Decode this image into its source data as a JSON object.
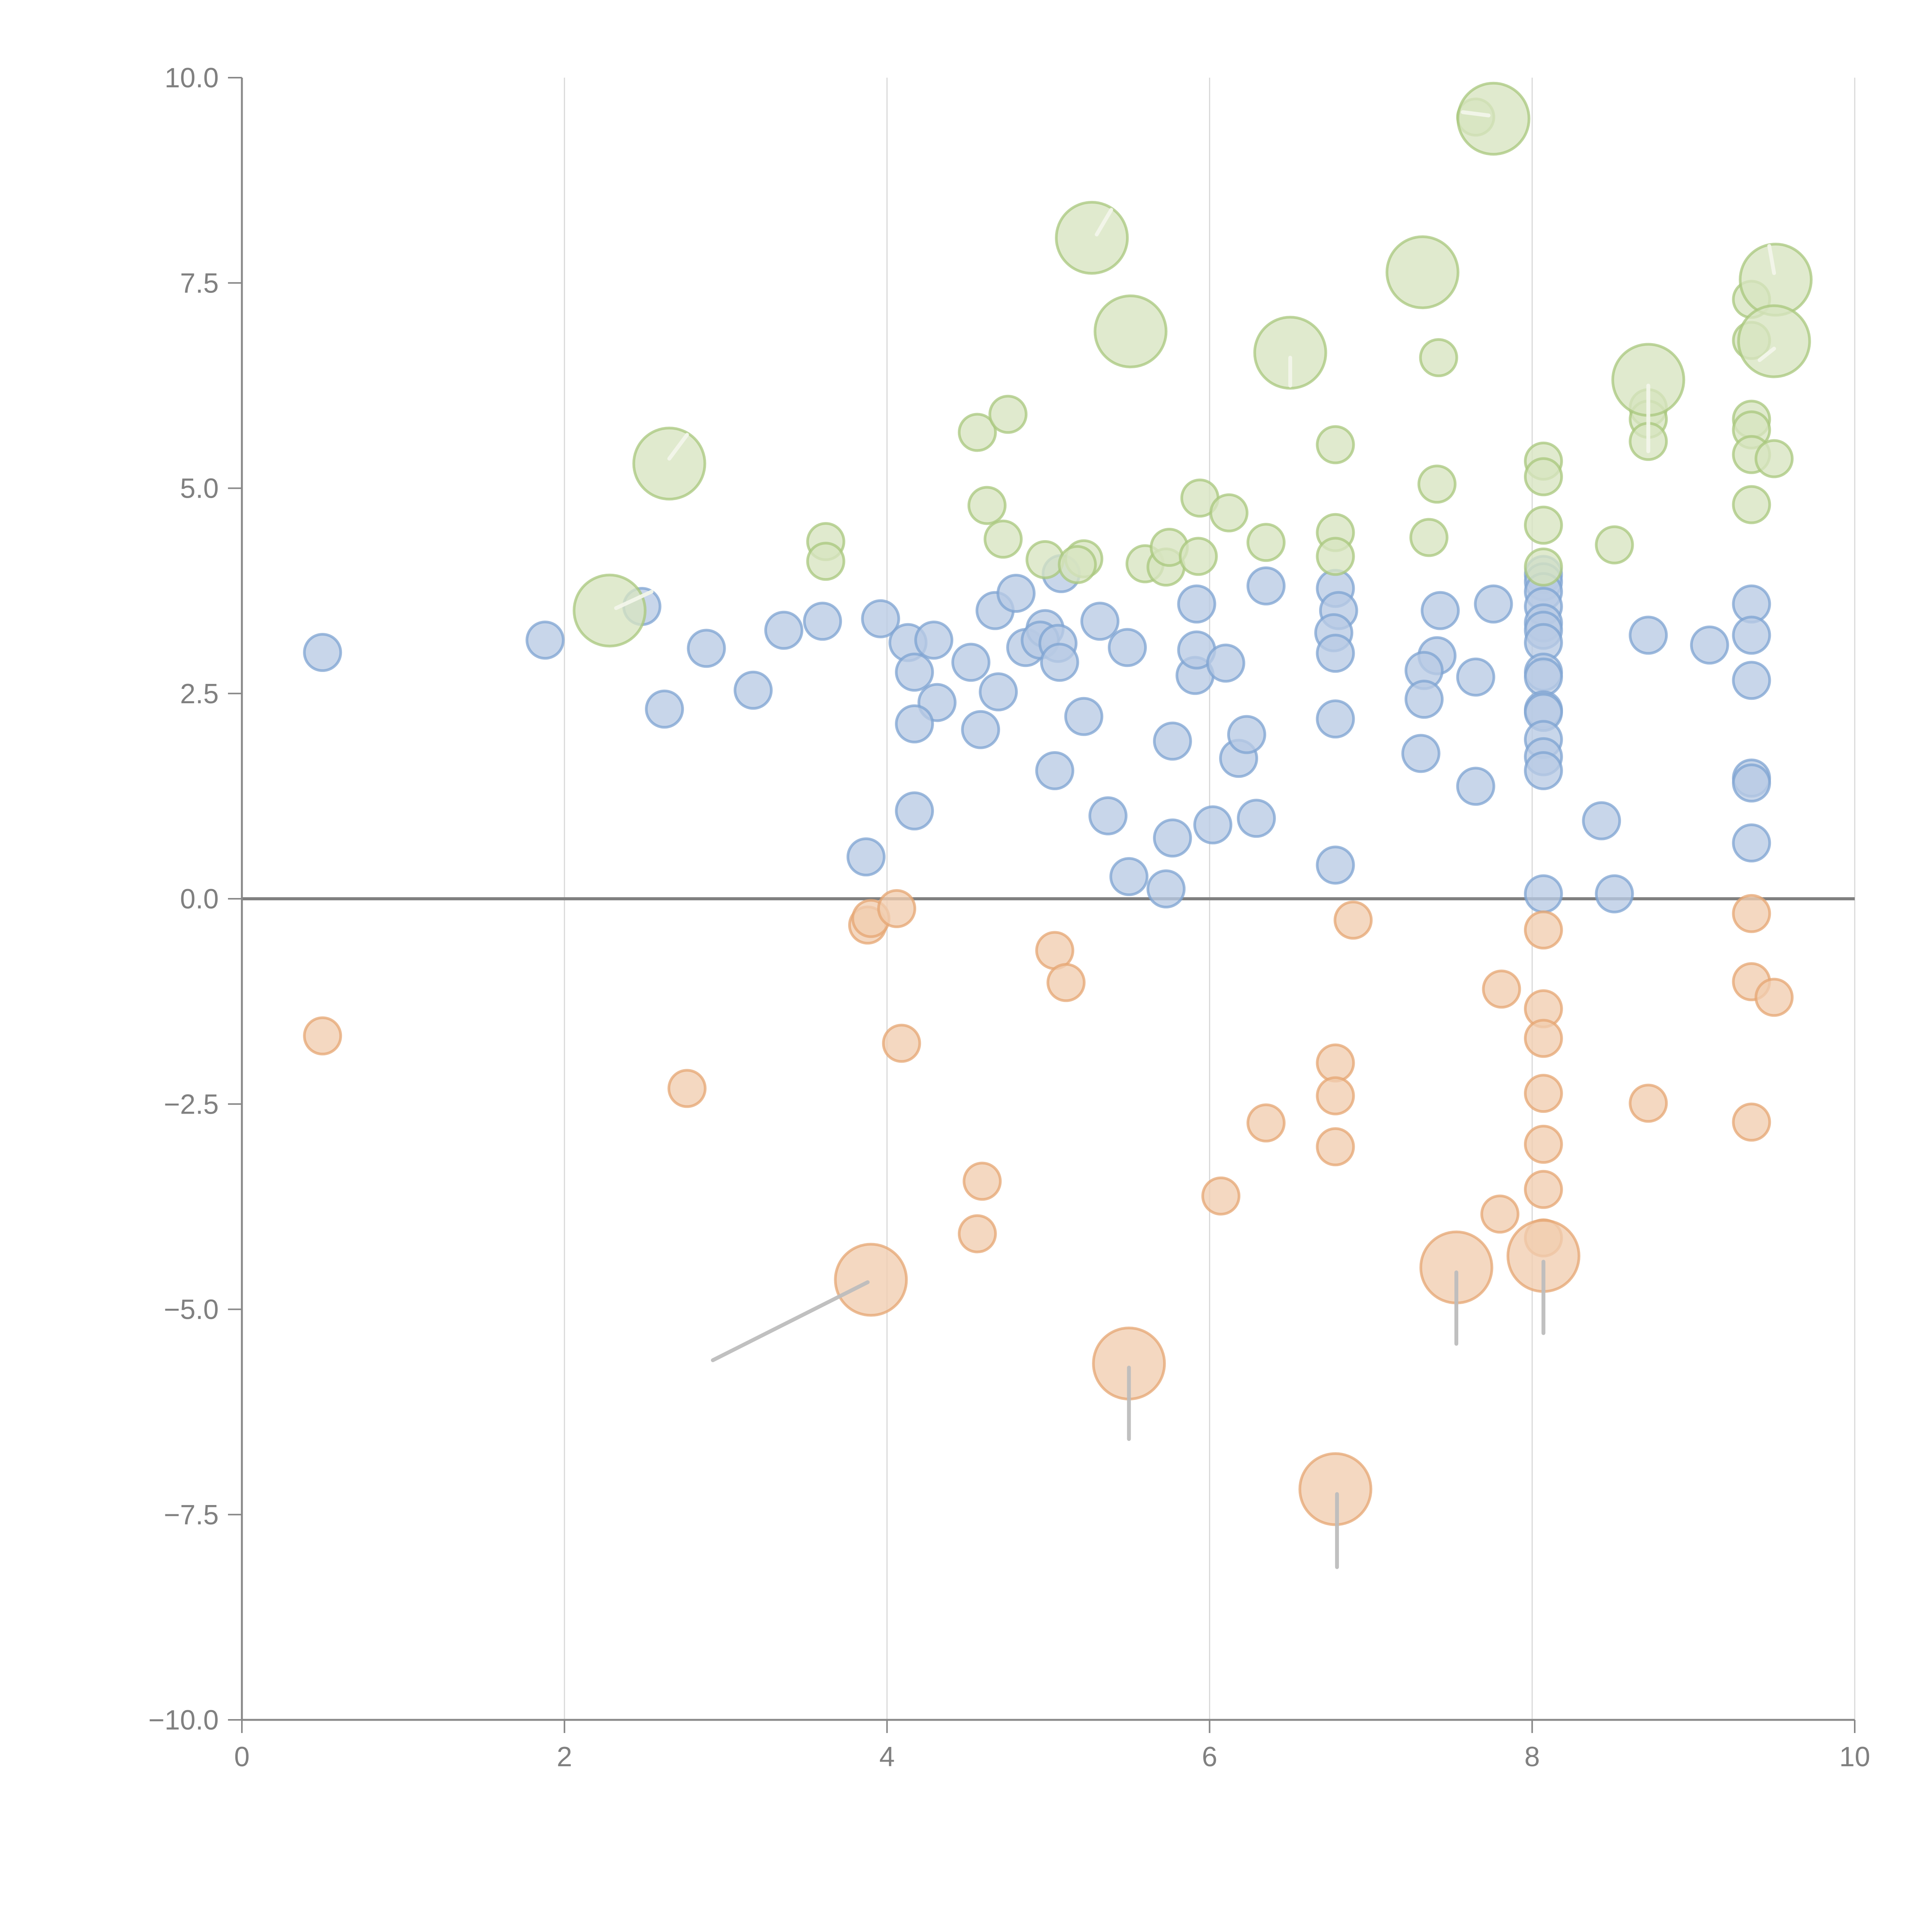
{
  "chart_data": {
    "type": "scatter",
    "subtype": "bubble",
    "title": "",
    "xlabel": "",
    "ylabel": "",
    "xlim": [
      0,
      10
    ],
    "ylim": [
      -10,
      10
    ],
    "x_ticks": [
      "0",
      "2",
      "4",
      "6",
      "8",
      "10"
    ],
    "x_tick_values": [
      0,
      2,
      4,
      6,
      8,
      10
    ],
    "y_ticks": [
      "10.0",
      "7.5",
      "5.0",
      "2.5",
      "0.0",
      "−2.5",
      "−5.0",
      "−7.5",
      "−10.0"
    ],
    "y_tick_values": [
      10,
      7.5,
      5,
      2.5,
      0,
      -2.5,
      -5,
      -7.5,
      -10
    ],
    "grid": "vertical",
    "legend": "none",
    "series": [
      {
        "name": "blue",
        "color": "#7ea3d2",
        "fill": "#b8cbe4",
        "size": "small",
        "points": [
          [
            0.5,
            3.0
          ],
          [
            1.88,
            3.15
          ],
          [
            2.48,
            3.56
          ],
          [
            2.62,
            2.31
          ],
          [
            2.88,
            3.05
          ],
          [
            3.17,
            2.54
          ],
          [
            3.36,
            3.27
          ],
          [
            3.6,
            3.38
          ],
          [
            3.96,
            3.41
          ],
          [
            4.13,
            3.12
          ],
          [
            4.17,
            2.76
          ],
          [
            4.29,
            3.15
          ],
          [
            4.31,
            2.39
          ],
          [
            4.17,
            2.13
          ],
          [
            4.17,
            1.07
          ],
          [
            3.87,
            0.51
          ],
          [
            4.52,
            2.88
          ],
          [
            4.67,
            3.51
          ],
          [
            4.69,
            2.52
          ],
          [
            4.58,
            2.06
          ],
          [
            4.8,
            3.72
          ],
          [
            4.86,
            3.06
          ],
          [
            4.98,
            3.29
          ],
          [
            4.95,
            3.15
          ],
          [
            5.06,
            3.11
          ],
          [
            5.07,
            2.88
          ],
          [
            5.08,
            3.96
          ],
          [
            5.22,
            2.22
          ],
          [
            5.04,
            1.56
          ],
          [
            5.32,
            3.38
          ],
          [
            5.49,
            3.06
          ],
          [
            5.37,
            1.01
          ],
          [
            5.5,
            0.27
          ],
          [
            5.73,
            0.12
          ],
          [
            5.77,
            0.74
          ],
          [
            5.77,
            1.92
          ],
          [
            5.91,
            2.72
          ],
          [
            5.92,
            3.03
          ],
          [
            5.92,
            3.59
          ],
          [
            6.1,
            2.87
          ],
          [
            6.02,
            0.9
          ],
          [
            6.18,
            1.71
          ],
          [
            6.23,
            2.0
          ],
          [
            6.29,
            0.98
          ],
          [
            6.35,
            3.81
          ],
          [
            6.78,
            3.78
          ],
          [
            6.8,
            3.51
          ],
          [
            6.77,
            3.24
          ],
          [
            6.78,
            2.99
          ],
          [
            6.78,
            2.19
          ],
          [
            6.78,
            0.41
          ],
          [
            7.43,
            3.51
          ],
          [
            7.41,
            2.96
          ],
          [
            7.33,
            2.78
          ],
          [
            7.33,
            2.43
          ],
          [
            7.31,
            1.77
          ],
          [
            7.65,
            2.7
          ],
          [
            7.65,
            1.37
          ],
          [
            7.76,
            3.59
          ],
          [
            8.07,
            3.95
          ],
          [
            8.07,
            3.86
          ],
          [
            8.07,
            3.74
          ],
          [
            8.07,
            3.56
          ],
          [
            8.07,
            3.36
          ],
          [
            8.07,
            3.27
          ],
          [
            8.07,
            3.12
          ],
          [
            8.07,
            2.76
          ],
          [
            8.07,
            2.7
          ],
          [
            8.07,
            2.3
          ],
          [
            8.07,
            2.27
          ],
          [
            8.07,
            1.94
          ],
          [
            8.07,
            1.73
          ],
          [
            8.07,
            1.56
          ],
          [
            8.07,
            0.06
          ],
          [
            8.43,
            0.95
          ],
          [
            8.51,
            0.06
          ],
          [
            8.72,
            3.21
          ],
          [
            9.1,
            3.09
          ],
          [
            9.36,
            3.59
          ],
          [
            9.36,
            3.21
          ],
          [
            9.36,
            2.66
          ],
          [
            9.36,
            1.47
          ],
          [
            9.36,
            1.41
          ],
          [
            9.36,
            0.68
          ]
        ]
      },
      {
        "name": "green",
        "color": "#a8c77c",
        "fill": "#d7e4c0",
        "size": "small",
        "points": [
          [
            3.62,
            4.35
          ],
          [
            3.62,
            4.11
          ],
          [
            4.56,
            5.68
          ],
          [
            4.75,
            5.9
          ],
          [
            4.62,
            4.79
          ],
          [
            4.72,
            4.38
          ],
          [
            4.98,
            4.13
          ],
          [
            5.22,
            4.14
          ],
          [
            5.18,
            4.07
          ],
          [
            5.6,
            4.08
          ],
          [
            5.73,
            4.04
          ],
          [
            5.75,
            4.28
          ],
          [
            5.93,
            4.17
          ],
          [
            5.94,
            4.88
          ],
          [
            6.12,
            4.7
          ],
          [
            6.35,
            4.34
          ],
          [
            6.78,
            5.53
          ],
          [
            6.78,
            4.46
          ],
          [
            6.78,
            4.17
          ],
          [
            7.42,
            6.59
          ],
          [
            7.41,
            5.05
          ],
          [
            7.36,
            4.4
          ],
          [
            7.65,
            9.52
          ],
          [
            8.07,
            5.33
          ],
          [
            8.07,
            5.14
          ],
          [
            8.07,
            4.55
          ],
          [
            8.07,
            4.04
          ],
          [
            8.51,
            4.31
          ],
          [
            8.72,
            5.98
          ],
          [
            8.72,
            5.84
          ],
          [
            8.72,
            5.57
          ],
          [
            9.36,
            7.3
          ],
          [
            9.36,
            6.8
          ],
          [
            9.36,
            5.84
          ],
          [
            9.36,
            5.71
          ],
          [
            9.36,
            5.41
          ],
          [
            9.5,
            5.36
          ],
          [
            9.36,
            4.8
          ]
        ]
      },
      {
        "name": "green-large",
        "color": "#a8c77c",
        "fill": "#d7e4c0",
        "size": "large",
        "points": [
          [
            2.28,
            3.51
          ],
          [
            2.65,
            5.3
          ],
          [
            5.27,
            8.05
          ],
          [
            5.51,
            6.91
          ],
          [
            6.5,
            6.65
          ],
          [
            7.32,
            7.63
          ],
          [
            7.76,
            9.5
          ],
          [
            8.72,
            6.32
          ],
          [
            9.51,
            7.54
          ],
          [
            9.5,
            6.79
          ]
        ]
      },
      {
        "name": "orange",
        "color": "#e6a572",
        "fill": "#f1cdb0",
        "size": "small",
        "points": [
          [
            0.5,
            -1.67
          ],
          [
            2.76,
            -2.31
          ],
          [
            3.88,
            -0.32
          ],
          [
            3.9,
            -0.24
          ],
          [
            4.06,
            -0.12
          ],
          [
            4.09,
            -1.76
          ],
          [
            4.59,
            -3.44
          ],
          [
            4.56,
            -4.08
          ],
          [
            5.04,
            -0.63
          ],
          [
            5.11,
            -1.02
          ],
          [
            6.07,
            -3.62
          ],
          [
            6.35,
            -2.73
          ],
          [
            6.78,
            -2.0
          ],
          [
            6.78,
            -2.4
          ],
          [
            6.78,
            -3.02
          ],
          [
            6.89,
            -0.26
          ],
          [
            7.81,
            -1.1
          ],
          [
            7.8,
            -3.84
          ],
          [
            8.07,
            -0.38
          ],
          [
            8.07,
            -1.34
          ],
          [
            8.07,
            -1.7
          ],
          [
            8.07,
            -2.37
          ],
          [
            8.07,
            -2.99
          ],
          [
            8.07,
            -3.54
          ],
          [
            8.07,
            -4.13
          ],
          [
            8.72,
            -2.49
          ],
          [
            9.36,
            -0.18
          ],
          [
            9.36,
            -1.01
          ],
          [
            9.5,
            -1.2
          ],
          [
            9.36,
            -2.72
          ]
        ]
      },
      {
        "name": "orange-large",
        "color": "#e6a572",
        "fill": "#f1cdb0",
        "size": "large",
        "points": [
          [
            3.9,
            -4.64
          ],
          [
            5.5,
            -5.66
          ],
          [
            6.78,
            -7.19
          ],
          [
            7.53,
            -4.49
          ],
          [
            8.07,
            -4.35
          ]
        ]
      }
    ]
  }
}
